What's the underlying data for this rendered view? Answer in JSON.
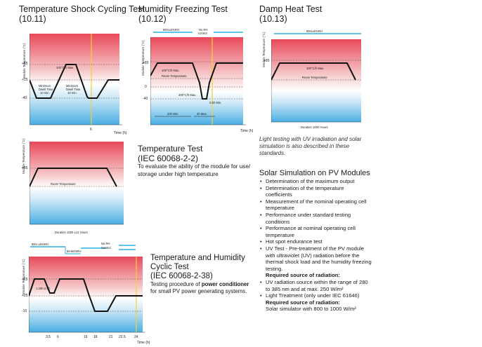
{
  "charts": {
    "shock": {
      "title": "Temperature Shock Cycling Test",
      "code": "(10.11)",
      "ylabel": "Module Temperature (°C)",
      "xlabel": "Time (h)",
      "yticks": [
        "+85",
        "+25",
        "-40"
      ],
      "xtick": "6",
      "rate": "100°C/h Max.",
      "dwell_left": [
        "Minimum",
        "Dwell Time",
        "10 min."
      ],
      "dwell_right": [
        "Minimum",
        "Dwell Time",
        "10 min."
      ]
    },
    "freeze": {
      "title": "Humidity Freezing Test",
      "code": "(10.12)",
      "ylabel": "Module Temperature (°C)",
      "xlabel": "Time (h)",
      "yticks": [
        "+85",
        "0",
        "-40"
      ],
      "rh": "85%±5%RH",
      "no_rh": [
        "No RH",
        "control"
      ],
      "rate_up": "100°C/h Max.",
      "room": "Room Temperature",
      "rate_down": "200°C/h Max.",
      "min_time": "0.5h Min.",
      "hold": "20h Min.",
      "max_time": "4h Max."
    },
    "damp": {
      "title": "Damp Heat Test",
      "code": "(10.13)",
      "ylabel": "Module Temperature (°C)",
      "yticks": [
        "+85"
      ],
      "rh": "85%±5%RH",
      "rate": "100°C/h Max.",
      "room": "Room Temperature",
      "duration": "Duration 1000 Hours"
    },
    "temp": {
      "ylabel": "Module Temperature (°C)",
      "yticks": [
        "+85"
      ],
      "room": "Room Temperature",
      "duration": "Duration 1000 ±12 Hours"
    },
    "cyclic": {
      "ylabel": "Module Temperature (°C)",
      "xlabel": "Time (h)",
      "yticks": [
        "+65",
        "+25",
        "-10"
      ],
      "rh_top": "85% ±5%RH",
      "rh_mid": "80-96%RH",
      "no_rh": [
        "No RH",
        "Control"
      ],
      "rate": "1.25h-2.5h",
      "xticks": [
        "3.5",
        "6",
        "16",
        "18",
        "21",
        "22.5",
        "24"
      ]
    }
  },
  "sections": {
    "temp_test": {
      "title1": "Temperature Test",
      "title2": "(IEC 60068-2-2)",
      "desc": "To evaluate the ability of the module for use/ storage under high temperature"
    },
    "cyclic_test": {
      "title1": "Temperature and Humidity",
      "title2": "Cyclic Test",
      "title3": "(IEC 60068-2-38)",
      "desc_a": "Testing procedure of ",
      "desc_b": "power conditioner",
      "desc_c": " for small PV power generating systems."
    },
    "uv_note": "Light testing with UV irradiation and solar simulation is also described in these standards.",
    "solar": {
      "title": "Solar Simulation on PV Modules",
      "items": [
        "Determination of the maximum output",
        "Determination of the temperature coefficients",
        "Measurement of the nominal operating cell temperature",
        "Performance under standard testing conditions",
        "Performance at nominal operating cell temperature",
        "Hot spot endurance test",
        "UV Test - Pre-treatment of the PV module with ultraviolet (UV) radiation before the thermal shock load and the humidity freezing testing."
      ],
      "req1": "Required source of radiation:",
      "item_uv": "UV radiation source within the range of 280 to 385 nm and at max. 250 W/m²",
      "item_light": "Light Treatment (only  under IEC 61646)",
      "req2": "Required source of radiation:",
      "sim": "Solar simulator with 800 to 1000 W/m²"
    }
  },
  "colors": {
    "hot": "#e8495a",
    "cold": "#5bb8e8",
    "yellow": "#f5d033",
    "cyan": "#2ab3e0"
  }
}
